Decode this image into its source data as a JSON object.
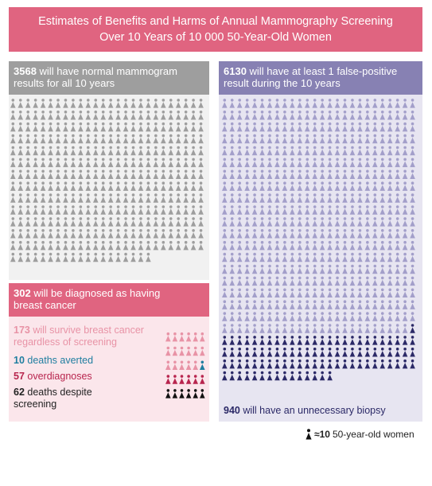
{
  "title": {
    "line1": "Estimates of Benefits and Harms of Annual Mammography Screening",
    "line2": "Over 10 Years of 10 000 50-Year-Old Women"
  },
  "normal": {
    "count": "3568",
    "text_line1": " will have normal mammogram",
    "text_line2": "results for all 10 years",
    "icons": 357,
    "color": "#9e9e9e"
  },
  "false_positive": {
    "count": "6130",
    "text_line1": " will have at least 1 false-positive",
    "text_line2": "result during the 10 years",
    "icons": 613,
    "color_light": "#a39fca",
    "color_dark": "#2b2967",
    "biopsy_icons": 94,
    "biopsy_count": "940",
    "biopsy_text": " will have an unnecessary biopsy"
  },
  "cancer": {
    "count": "302",
    "text_line1": " will be diagnosed as having",
    "text_line2": "breast cancer",
    "survive_count": "173",
    "survive_line1": " will survive breast cancer",
    "survive_line2": "regardless of screening",
    "survive_icons": 17,
    "averted_count": "10",
    "averted_text": " deaths averted",
    "averted_icons": 1,
    "overdx_count": "57",
    "overdx_text": " overdiagnoses",
    "overdx_icons": 6,
    "deaths_count": "62",
    "deaths_line1": " deaths despite",
    "deaths_line2": "screening",
    "deaths_icons": 6,
    "colors": {
      "survive": "#e893a6",
      "averted": "#1f7ea0",
      "overdx": "#b8254e",
      "deaths": "#111111"
    }
  },
  "legend": {
    "value": "≈10",
    "text": "50-year-old women"
  }
}
